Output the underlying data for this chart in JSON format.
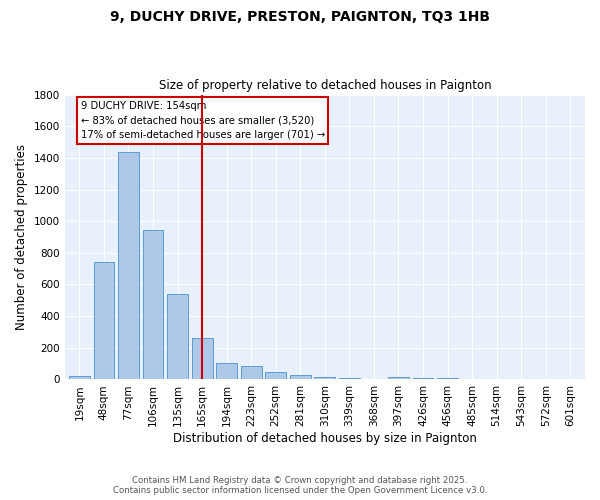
{
  "title1": "9, DUCHY DRIVE, PRESTON, PAIGNTON, TQ3 1HB",
  "title2": "Size of property relative to detached houses in Paignton",
  "xlabel": "Distribution of detached houses by size in Paignton",
  "ylabel": "Number of detached properties",
  "bar_labels": [
    "19sqm",
    "48sqm",
    "77sqm",
    "106sqm",
    "135sqm",
    "165sqm",
    "194sqm",
    "223sqm",
    "252sqm",
    "281sqm",
    "310sqm",
    "339sqm",
    "368sqm",
    "397sqm",
    "426sqm",
    "456sqm",
    "485sqm",
    "514sqm",
    "543sqm",
    "572sqm",
    "601sqm"
  ],
  "bar_values": [
    20,
    740,
    1440,
    945,
    540,
    265,
    105,
    85,
    50,
    28,
    15,
    8,
    5,
    14,
    8,
    10,
    5,
    3,
    4,
    2,
    3
  ],
  "bar_color": "#aec9e8",
  "bar_edge_color": "#5b9bd5",
  "vline_color": "#cc0000",
  "annotation_title": "9 DUCHY DRIVE: 154sqm",
  "annotation_line1": "← 83% of detached houses are smaller (3,520)",
  "annotation_line2": "17% of semi-detached houses are larger (701) →",
  "annotation_box_color": "#ffffff",
  "annotation_box_edge": "#cc0000",
  "footer1": "Contains HM Land Registry data © Crown copyright and database right 2025.",
  "footer2": "Contains public sector information licensed under the Open Government Licence v3.0.",
  "bg_color": "#e8f0fb",
  "ylim": [
    0,
    1800
  ],
  "yticks": [
    0,
    200,
    400,
    600,
    800,
    1000,
    1200,
    1400,
    1600,
    1800
  ],
  "vline_pos": 5.0
}
